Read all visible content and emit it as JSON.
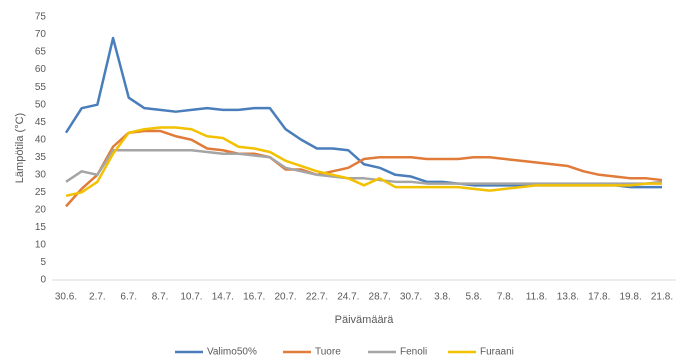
{
  "chart_data": {
    "type": "line",
    "categories": [
      "30.6.",
      null,
      "2.7.",
      null,
      "6.7.",
      null,
      "8.7.",
      null,
      "10.7.",
      null,
      "14.7.",
      null,
      "16.7.",
      null,
      "20.7.",
      null,
      "22.7.",
      null,
      "24.7.",
      null,
      "28.7.",
      null,
      "30.7.",
      null,
      "3.8.",
      null,
      "5.8.",
      null,
      "7.8.",
      null,
      "11.8.",
      null,
      "13.8.",
      null,
      "17.8.",
      null,
      "19.8.",
      null,
      "21.8."
    ],
    "series": [
      {
        "name": "Valimo50%",
        "color": "#4a7ebb",
        "values": [
          42,
          49,
          50,
          69,
          52,
          49,
          48.5,
          48,
          48.5,
          49,
          48.5,
          48.5,
          49,
          49,
          43,
          40,
          37.5,
          37.5,
          37,
          33,
          32,
          30,
          29.5,
          28,
          28,
          27.5,
          27,
          27,
          27,
          27,
          27,
          27,
          27,
          27,
          27,
          27,
          26.5,
          26.5,
          26.5
        ]
      },
      {
        "name": "Tuore",
        "color": "#e07b39",
        "values": [
          21,
          26,
          30,
          38,
          42,
          42.5,
          42.5,
          41,
          40,
          37.5,
          37,
          36,
          36,
          35,
          31.5,
          31.5,
          30,
          31,
          32,
          34.5,
          35,
          35,
          35,
          34.5,
          34.5,
          34.5,
          35,
          35,
          34.5,
          34,
          33.5,
          33,
          32.5,
          31,
          30,
          29.5,
          29,
          29,
          28.5
        ]
      },
      {
        "name": "Fenoli",
        "color": "#a5a5a5",
        "values": [
          28,
          31,
          30,
          37,
          37,
          37,
          37,
          37,
          37,
          36.5,
          36,
          36,
          35.5,
          35,
          32,
          31,
          30,
          29.5,
          29,
          29,
          28.5,
          28,
          28,
          27.5,
          27.5,
          27.5,
          27.5,
          27.5,
          27.5,
          27.5,
          27.5,
          27.5,
          27.5,
          27.5,
          27.5,
          27.5,
          27.5,
          27.5,
          28
        ]
      },
      {
        "name": "Furaani",
        "color": "#f2c100",
        "values": [
          24,
          25,
          28,
          36,
          42,
          43,
          43.5,
          43.5,
          43,
          41,
          40.5,
          38,
          37.5,
          36.5,
          34,
          32.5,
          31,
          30,
          29,
          27,
          29,
          26.5,
          26.5,
          26.5,
          26.5,
          26.5,
          26,
          25.5,
          26,
          26.5,
          27,
          27,
          27,
          27,
          27,
          27,
          27,
          27.5,
          27.5
        ]
      }
    ],
    "ylim": [
      0,
      75
    ],
    "yticks": [
      0,
      5,
      10,
      15,
      20,
      25,
      30,
      35,
      40,
      45,
      50,
      55,
      60,
      65,
      70,
      75
    ],
    "ylabel": "Lämpötila (°C)",
    "xlabel": "Päivämäärä",
    "grid": false,
    "legend": "bottom"
  }
}
